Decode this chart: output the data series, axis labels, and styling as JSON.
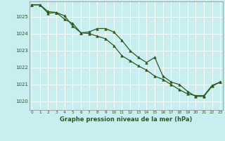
{
  "title": "Graphe pression niveau de la mer (hPa)",
  "background_color": "#c8eef0",
  "grid_color": "#ffffff",
  "line_color": "#2d5a1b",
  "marker_color": "#2d5a1b",
  "x_ticks": [
    0,
    1,
    2,
    3,
    4,
    5,
    6,
    7,
    8,
    9,
    10,
    11,
    12,
    13,
    14,
    15,
    16,
    17,
    18,
    19,
    20,
    21,
    22,
    23
  ],
  "ylim": [
    1019.5,
    1025.9
  ],
  "yticks": [
    1020,
    1021,
    1022,
    1023,
    1024,
    1025
  ],
  "series1_x": [
    0,
    1,
    2,
    3,
    4,
    5,
    6,
    7,
    8,
    9,
    10,
    11,
    12,
    13,
    14,
    15,
    16,
    17,
    18,
    19,
    20,
    21,
    22,
    23
  ],
  "series1_y": [
    1025.7,
    1025.7,
    1025.3,
    1025.25,
    1025.05,
    1024.45,
    1024.05,
    1024.1,
    1024.3,
    1024.3,
    1024.1,
    1023.6,
    1023.0,
    1022.6,
    1022.3,
    1022.6,
    1021.5,
    1021.15,
    1021.0,
    1020.6,
    1020.3,
    1020.3,
    1020.9,
    1021.15
  ],
  "series2_x": [
    0,
    1,
    2,
    3,
    4,
    5,
    6,
    7,
    8,
    9,
    10,
    11,
    12,
    13,
    14,
    15,
    16,
    17,
    18,
    19,
    20,
    21,
    22,
    23
  ],
  "series2_y": [
    1025.7,
    1025.7,
    1025.2,
    1025.25,
    1024.85,
    1024.6,
    1024.05,
    1024.0,
    1023.85,
    1023.7,
    1023.3,
    1022.7,
    1022.4,
    1022.1,
    1021.85,
    1021.5,
    1021.3,
    1021.0,
    1020.7,
    1020.45,
    1020.35,
    1020.35,
    1020.95,
    1021.15
  ]
}
